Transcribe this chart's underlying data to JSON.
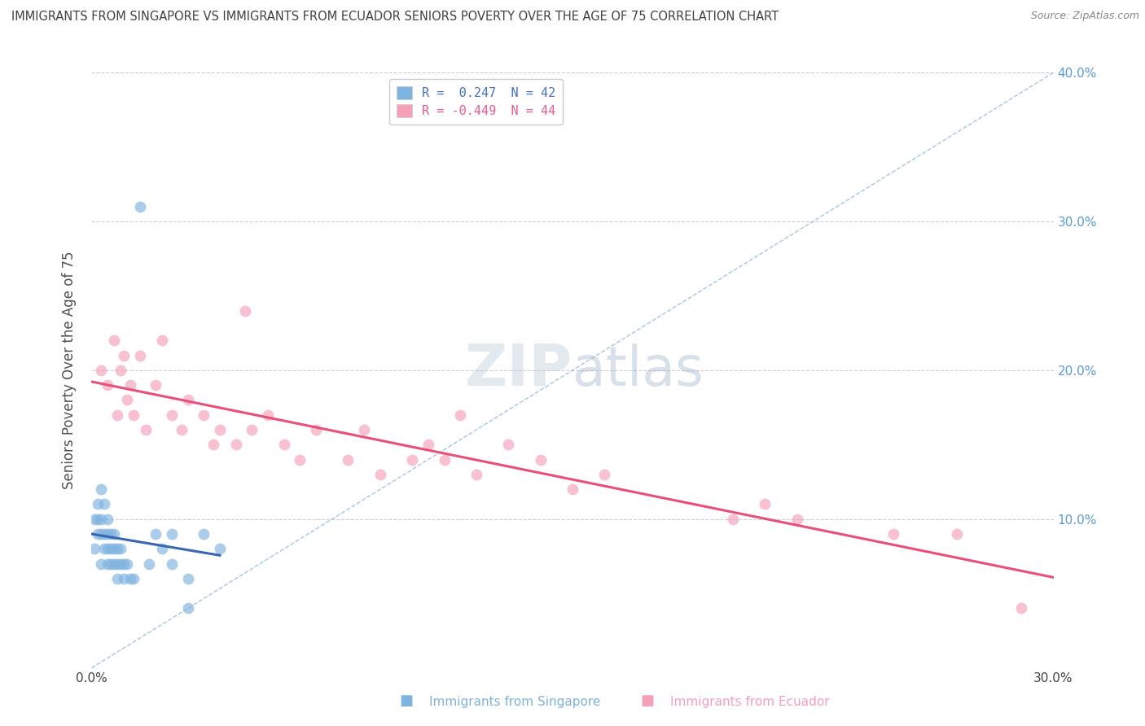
{
  "title": "IMMIGRANTS FROM SINGAPORE VS IMMIGRANTS FROM ECUADOR SENIORS POVERTY OVER THE AGE OF 75 CORRELATION CHART",
  "source": "Source: ZipAtlas.com",
  "ylabel": "Seniors Poverty Over the Age of 75",
  "xlim": [
    0.0,
    0.3
  ],
  "ylim": [
    0.0,
    0.4
  ],
  "x_ticks": [
    0.0,
    0.05,
    0.1,
    0.15,
    0.2,
    0.25,
    0.3
  ],
  "y_ticks": [
    0.0,
    0.1,
    0.2,
    0.3,
    0.4
  ],
  "legend_entries": [
    {
      "label": "R =  0.247  N = 42",
      "color": "#aec6e8"
    },
    {
      "label": "R = -0.449  N = 44",
      "color": "#f4b8c8"
    }
  ],
  "singapore_color": "#7fb3e0",
  "ecuador_color": "#f4a0b8",
  "singapore_line_color": "#3a66b0",
  "ecuador_line_color": "#e8507a",
  "watermark_zip": "ZIP",
  "watermark_atlas": "atlas",
  "background_color": "#ffffff",
  "grid_color": "#c8c8c8",
  "title_color": "#404040",
  "axis_label_color": "#505050",
  "tick_color_right": "#5b9bd5",
  "singapore_x": [
    0.001,
    0.001,
    0.002,
    0.002,
    0.002,
    0.003,
    0.003,
    0.003,
    0.003,
    0.004,
    0.004,
    0.004,
    0.005,
    0.005,
    0.005,
    0.005,
    0.006,
    0.006,
    0.006,
    0.007,
    0.007,
    0.007,
    0.008,
    0.008,
    0.008,
    0.009,
    0.009,
    0.01,
    0.01,
    0.011,
    0.012,
    0.013,
    0.015,
    0.018,
    0.02,
    0.022,
    0.025,
    0.03,
    0.035,
    0.04,
    0.025,
    0.03
  ],
  "singapore_y": [
    0.08,
    0.1,
    0.09,
    0.1,
    0.11,
    0.07,
    0.09,
    0.1,
    0.12,
    0.08,
    0.09,
    0.11,
    0.07,
    0.08,
    0.09,
    0.1,
    0.07,
    0.08,
    0.09,
    0.07,
    0.08,
    0.09,
    0.06,
    0.07,
    0.08,
    0.07,
    0.08,
    0.06,
    0.07,
    0.07,
    0.06,
    0.06,
    0.31,
    0.07,
    0.09,
    0.08,
    0.09,
    0.04,
    0.09,
    0.08,
    0.07,
    0.06
  ],
  "ecuador_x": [
    0.003,
    0.005,
    0.007,
    0.008,
    0.009,
    0.01,
    0.011,
    0.012,
    0.013,
    0.015,
    0.017,
    0.02,
    0.022,
    0.025,
    0.028,
    0.03,
    0.035,
    0.038,
    0.04,
    0.045,
    0.048,
    0.05,
    0.055,
    0.06,
    0.065,
    0.07,
    0.08,
    0.085,
    0.09,
    0.1,
    0.105,
    0.11,
    0.115,
    0.12,
    0.13,
    0.14,
    0.15,
    0.16,
    0.2,
    0.21,
    0.22,
    0.25,
    0.27,
    0.29
  ],
  "ecuador_y": [
    0.2,
    0.19,
    0.22,
    0.17,
    0.2,
    0.21,
    0.18,
    0.19,
    0.17,
    0.21,
    0.16,
    0.19,
    0.22,
    0.17,
    0.16,
    0.18,
    0.17,
    0.15,
    0.16,
    0.15,
    0.24,
    0.16,
    0.17,
    0.15,
    0.14,
    0.16,
    0.14,
    0.16,
    0.13,
    0.14,
    0.15,
    0.14,
    0.17,
    0.13,
    0.15,
    0.14,
    0.12,
    0.13,
    0.1,
    0.11,
    0.1,
    0.09,
    0.09,
    0.04
  ]
}
